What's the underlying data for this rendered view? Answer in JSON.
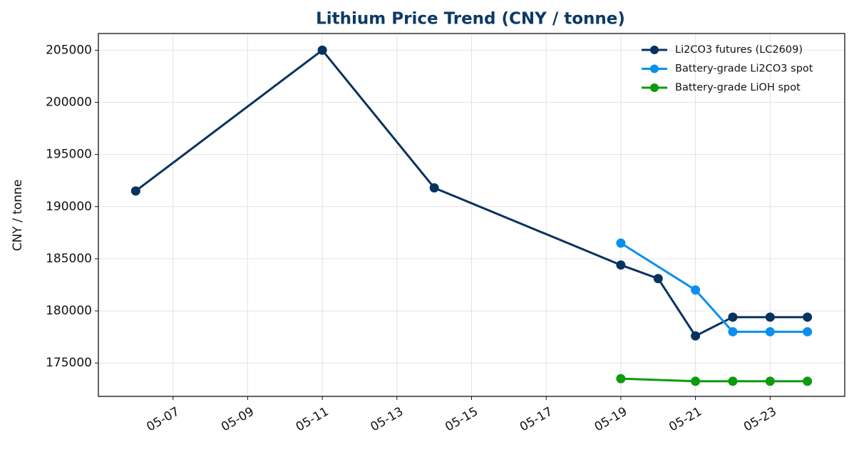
{
  "chart_data": {
    "type": "line",
    "title": "Lithium Price Trend  (CNY / tonne)",
    "y_label": "CNY / tonne",
    "series": [
      {
        "name": "Li2CO3 futures (LC2609)",
        "color": "#06335e",
        "x": [
          "05-06",
          "05-11",
          "05-14",
          "05-19",
          "05-20",
          "05-21",
          "05-22",
          "05-23",
          "05-24"
        ],
        "values": [
          191500,
          205000,
          191800,
          184400,
          183100,
          177600,
          179400,
          179400,
          179400
        ]
      },
      {
        "name": "Battery-grade Li2CO3 spot",
        "color": "#0a8ff0",
        "x": [
          "05-19",
          "05-21",
          "05-22",
          "05-23",
          "05-24"
        ],
        "values": [
          186500,
          182000,
          178000,
          178000,
          178000
        ]
      },
      {
        "name": "Battery-grade LiOH spot",
        "color": "#0a9c0a",
        "x": [
          "05-19",
          "05-21",
          "05-22",
          "05-23",
          "05-24"
        ],
        "values": [
          173500,
          173250,
          173250,
          173250,
          173250
        ]
      }
    ],
    "xlim": [
      "05-05",
      "05-25"
    ],
    "xticks": [
      "05-07",
      "05-09",
      "05-11",
      "05-13",
      "05-15",
      "05-17",
      "05-19",
      "05-21",
      "05-23"
    ],
    "ylim": [
      171800,
      206600
    ],
    "yticks": [
      175000,
      180000,
      185000,
      190000,
      195000,
      200000,
      205000
    ],
    "grid": true,
    "legend": "upper right"
  }
}
